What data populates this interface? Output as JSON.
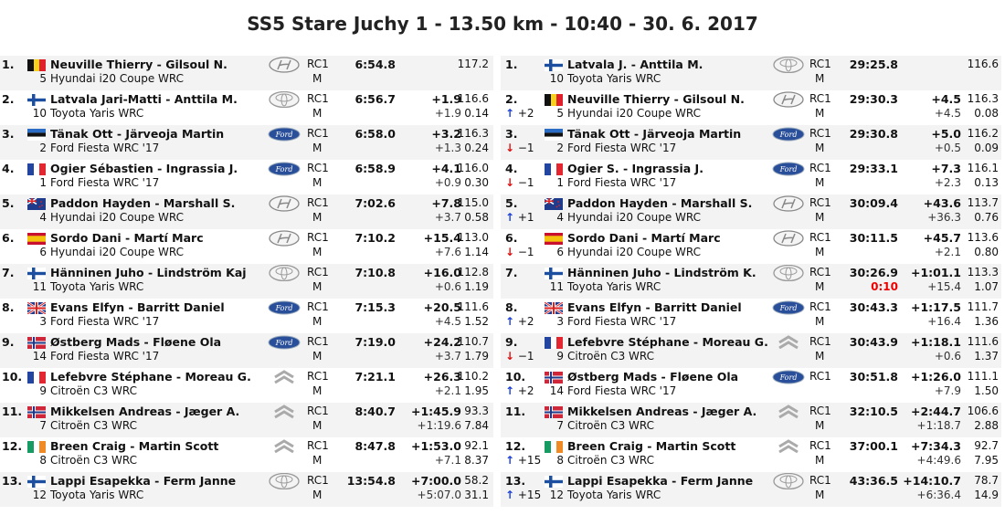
{
  "title": "SS5 Stare Juchy 1 - 13.50 km - 10:40 - 30. 6. 2017",
  "colors": {
    "row_shade": "#f3f3f3",
    "penalty": "#ee0000",
    "up_arrow": "#1a3fd8",
    "down_arrow": "#e01010"
  },
  "stage_results": [
    {
      "pos": "1.",
      "flag": "be",
      "crew": "Neuville Thierry - Gilsoul N.",
      "num": "5",
      "car": "Hyundai i20 Coupe WRC",
      "logo": "hyundai",
      "cls": "RC1",
      "cls2": "M",
      "time": "6:54.8",
      "diff": "",
      "diff_prev": "",
      "speed": "117.2",
      "km": ""
    },
    {
      "pos": "2.",
      "flag": "fi",
      "crew": "Latvala Jari-Matti - Anttila M.",
      "num": "10",
      "car": "Toyota Yaris WRC",
      "logo": "toyota",
      "cls": "RC1",
      "cls2": "M",
      "time": "6:56.7",
      "diff": "+1.9",
      "diff_prev": "+1.9",
      "speed": "116.6",
      "km": "0.14"
    },
    {
      "pos": "3.",
      "flag": "ee",
      "crew": "Tänak Ott - Järveoja Martin",
      "num": "2",
      "car": "Ford Fiesta WRC '17",
      "logo": "ford",
      "cls": "RC1",
      "cls2": "M",
      "time": "6:58.0",
      "diff": "+3.2",
      "diff_prev": "+1.3",
      "speed": "116.3",
      "km": "0.24"
    },
    {
      "pos": "4.",
      "flag": "fr",
      "crew": "Ogier Sébastien - Ingrassia J.",
      "num": "1",
      "car": "Ford Fiesta WRC '17",
      "logo": "ford",
      "cls": "RC1",
      "cls2": "M",
      "time": "6:58.9",
      "diff": "+4.1",
      "diff_prev": "+0.9",
      "speed": "116.0",
      "km": "0.30"
    },
    {
      "pos": "5.",
      "flag": "nz",
      "crew": "Paddon Hayden - Marshall S.",
      "num": "4",
      "car": "Hyundai i20 Coupe WRC",
      "logo": "hyundai",
      "cls": "RC1",
      "cls2": "M",
      "time": "7:02.6",
      "diff": "+7.8",
      "diff_prev": "+3.7",
      "speed": "115.0",
      "km": "0.58"
    },
    {
      "pos": "6.",
      "flag": "es",
      "crew": "Sordo Dani - Martí Marc",
      "num": "6",
      "car": "Hyundai i20 Coupe WRC",
      "logo": "hyundai",
      "cls": "RC1",
      "cls2": "M",
      "time": "7:10.2",
      "diff": "+15.4",
      "diff_prev": "+7.6",
      "speed": "113.0",
      "km": "1.14"
    },
    {
      "pos": "7.",
      "flag": "fi",
      "crew": "Hänninen Juho - Lindström Kaj",
      "num": "11",
      "car": "Toyota Yaris WRC",
      "logo": "toyota",
      "cls": "RC1",
      "cls2": "M",
      "time": "7:10.8",
      "diff": "+16.0",
      "diff_prev": "+0.6",
      "speed": "112.8",
      "km": "1.19"
    },
    {
      "pos": "8.",
      "flag": "gb",
      "crew": "Evans Elfyn - Barritt Daniel",
      "num": "3",
      "car": "Ford Fiesta WRC '17",
      "logo": "ford",
      "cls": "RC1",
      "cls2": "M",
      "time": "7:15.3",
      "diff": "+20.5",
      "diff_prev": "+4.5",
      "speed": "111.6",
      "km": "1.52"
    },
    {
      "pos": "9.",
      "flag": "no",
      "crew": "Østberg Mads - Fløene Ola",
      "num": "14",
      "car": "Ford Fiesta WRC '17",
      "logo": "ford",
      "cls": "RC1",
      "cls2": "M",
      "time": "7:19.0",
      "diff": "+24.2",
      "diff_prev": "+3.7",
      "speed": "110.7",
      "km": "1.79"
    },
    {
      "pos": "10.",
      "flag": "fr",
      "crew": "Lefebvre Stéphane - Moreau G.",
      "num": "9",
      "car": "Citroën C3 WRC",
      "logo": "citroen",
      "cls": "RC1",
      "cls2": "M",
      "time": "7:21.1",
      "diff": "+26.3",
      "diff_prev": "+2.1",
      "speed": "110.2",
      "km": "1.95"
    },
    {
      "pos": "11.",
      "flag": "no",
      "crew": "Mikkelsen Andreas - Jæger A.",
      "num": "7",
      "car": "Citroën C3 WRC",
      "logo": "citroen",
      "cls": "RC1",
      "cls2": "M",
      "time": "8:40.7",
      "diff": "+1:45.9",
      "diff_prev": "+1:19.6",
      "speed": "93.3",
      "km": "7.84"
    },
    {
      "pos": "12.",
      "flag": "ie",
      "crew": "Breen Craig - Martin Scott",
      "num": "8",
      "car": "Citroën C3 WRC",
      "logo": "citroen",
      "cls": "RC1",
      "cls2": "M",
      "time": "8:47.8",
      "diff": "+1:53.0",
      "diff_prev": "+7.1",
      "speed": "92.1",
      "km": "8.37"
    },
    {
      "pos": "13.",
      "flag": "fi",
      "crew": "Lappi Esapekka - Ferm Janne",
      "num": "12",
      "car": "Toyota Yaris WRC",
      "logo": "toyota",
      "cls": "RC1",
      "cls2": "M",
      "time": "13:54.8",
      "diff": "+7:00.0",
      "diff_prev": "+5:07.0",
      "speed": "58.2",
      "km": "31.1"
    }
  ],
  "overall_results": [
    {
      "pos": "1.",
      "change": "",
      "dir": "",
      "flag": "fi",
      "crew": "Latvala J. - Anttila M.",
      "num": "10",
      "car": "Toyota Yaris WRC",
      "logo": "toyota",
      "cls": "RC1",
      "cls2": "M",
      "time": "29:25.8",
      "penalty": "",
      "diff": "",
      "diff_prev": "",
      "speed": "116.6",
      "km": ""
    },
    {
      "pos": "2.",
      "change": "+2",
      "dir": "up",
      "flag": "be",
      "crew": "Neuville Thierry - Gilsoul N.",
      "num": "5",
      "car": "Hyundai i20 Coupe WRC",
      "logo": "hyundai",
      "cls": "RC1",
      "cls2": "M",
      "time": "29:30.3",
      "penalty": "",
      "diff": "+4.5",
      "diff_prev": "+4.5",
      "speed": "116.3",
      "km": "0.08"
    },
    {
      "pos": "3.",
      "change": "−1",
      "dir": "down",
      "flag": "ee",
      "crew": "Tänak Ott - Järveoja Martin",
      "num": "2",
      "car": "Ford Fiesta WRC '17",
      "logo": "ford",
      "cls": "RC1",
      "cls2": "M",
      "time": "29:30.8",
      "penalty": "",
      "diff": "+5.0",
      "diff_prev": "+0.5",
      "speed": "116.2",
      "km": "0.09"
    },
    {
      "pos": "4.",
      "change": "−1",
      "dir": "down",
      "flag": "fr",
      "crew": "Ogier S. - Ingrassia J.",
      "num": "1",
      "car": "Ford Fiesta WRC '17",
      "logo": "ford",
      "cls": "RC1",
      "cls2": "M",
      "time": "29:33.1",
      "penalty": "",
      "diff": "+7.3",
      "diff_prev": "+2.3",
      "speed": "116.1",
      "km": "0.13"
    },
    {
      "pos": "5.",
      "change": "+1",
      "dir": "up",
      "flag": "nz",
      "crew": "Paddon Hayden - Marshall S.",
      "num": "4",
      "car": "Hyundai i20 Coupe WRC",
      "logo": "hyundai",
      "cls": "RC1",
      "cls2": "M",
      "time": "30:09.4",
      "penalty": "",
      "diff": "+43.6",
      "diff_prev": "+36.3",
      "speed": "113.7",
      "km": "0.76"
    },
    {
      "pos": "6.",
      "change": "−1",
      "dir": "down",
      "flag": "es",
      "crew": "Sordo Dani - Martí Marc",
      "num": "6",
      "car": "Hyundai i20 Coupe WRC",
      "logo": "hyundai",
      "cls": "RC1",
      "cls2": "M",
      "time": "30:11.5",
      "penalty": "",
      "diff": "+45.7",
      "diff_prev": "+2.1",
      "speed": "113.6",
      "km": "0.80"
    },
    {
      "pos": "7.",
      "change": "",
      "dir": "",
      "flag": "fi",
      "crew": "Hänninen Juho - Lindström K.",
      "num": "11",
      "car": "Toyota Yaris WRC",
      "logo": "toyota",
      "cls": "RC1",
      "cls2": "M",
      "time": "30:26.9",
      "penalty": "0:10",
      "diff": "+1:01.1",
      "diff_prev": "+15.4",
      "speed": "113.3",
      "km": "1.07"
    },
    {
      "pos": "8.",
      "change": "+2",
      "dir": "up",
      "flag": "gb",
      "crew": "Evans Elfyn - Barritt Daniel",
      "num": "3",
      "car": "Ford Fiesta WRC '17",
      "logo": "ford",
      "cls": "RC1",
      "cls2": "M",
      "time": "30:43.3",
      "penalty": "",
      "diff": "+1:17.5",
      "diff_prev": "+16.4",
      "speed": "111.7",
      "km": "1.36"
    },
    {
      "pos": "9.",
      "change": "−1",
      "dir": "down",
      "flag": "fr",
      "crew": "Lefebvre Stéphane - Moreau G.",
      "num": "9",
      "car": "Citroën C3 WRC",
      "logo": "citroen",
      "cls": "RC1",
      "cls2": "M",
      "time": "30:43.9",
      "penalty": "",
      "diff": "+1:18.1",
      "diff_prev": "+0.6",
      "speed": "111.6",
      "km": "1.37"
    },
    {
      "pos": "10.",
      "change": "+2",
      "dir": "up",
      "flag": "no",
      "crew": "Østberg Mads - Fløene Ola",
      "num": "14",
      "car": "Ford Fiesta WRC '17",
      "logo": "ford",
      "cls": "RC1",
      "cls2": "",
      "time": "30:51.8",
      "penalty": "",
      "diff": "+1:26.0",
      "diff_prev": "+7.9",
      "speed": "111.1",
      "km": "1.50"
    },
    {
      "pos": "11.",
      "change": "",
      "dir": "",
      "flag": "no",
      "crew": "Mikkelsen Andreas - Jæger A.",
      "num": "7",
      "car": "Citroën C3 WRC",
      "logo": "citroen",
      "cls": "RC1",
      "cls2": "M",
      "time": "32:10.5",
      "penalty": "",
      "diff": "+2:44.7",
      "diff_prev": "+1:18.7",
      "speed": "106.6",
      "km": "2.88"
    },
    {
      "pos": "12.",
      "change": "+15",
      "dir": "up",
      "flag": "ie",
      "crew": "Breen Craig - Martin Scott",
      "num": "8",
      "car": "Citroën C3 WRC",
      "logo": "citroen",
      "cls": "RC1",
      "cls2": "M",
      "time": "37:00.1",
      "penalty": "",
      "diff": "+7:34.3",
      "diff_prev": "+4:49.6",
      "speed": "92.7",
      "km": "7.95"
    },
    {
      "pos": "13.",
      "change": "+15",
      "dir": "up",
      "flag": "fi",
      "crew": "Lappi Esapekka - Ferm Janne",
      "num": "12",
      "car": "Toyota Yaris WRC",
      "logo": "toyota",
      "cls": "RC1",
      "cls2": "M",
      "time": "43:36.5",
      "penalty": "",
      "diff": "+14:10.7",
      "diff_prev": "+6:36.4",
      "speed": "78.7",
      "km": "14.9"
    }
  ]
}
